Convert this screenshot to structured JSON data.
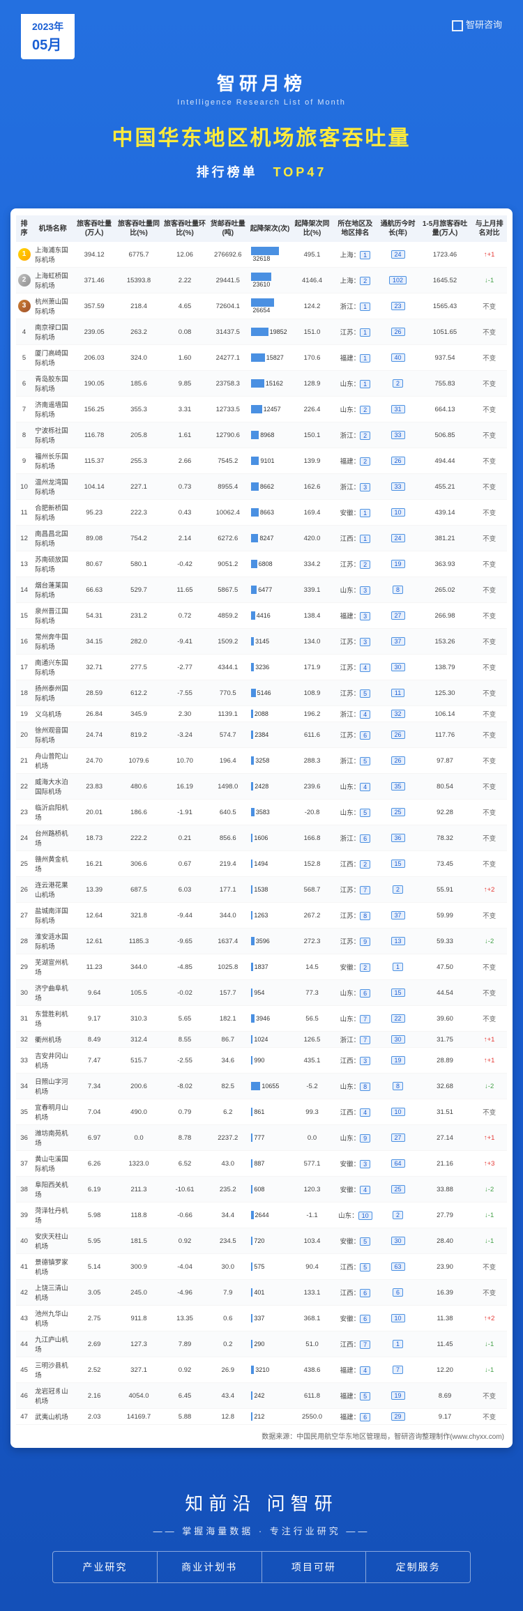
{
  "date": {
    "year": "2023年",
    "month": "05月"
  },
  "logo": "智研咨询",
  "header": {
    "chinese": "智研月榜",
    "english": "Intelligence Research List of Month",
    "main": "中国华东地区机场旅客吞吐量",
    "sub1": "排行榜单",
    "sub2": "TOP47"
  },
  "columns": [
    "排序",
    "机场名称",
    "旅客吞吐量(万人)",
    "旅客吞吐量同比(%)",
    "旅客吞吐量环比(%)",
    "货邮吞吐量(吨)",
    "起降架次(次)",
    "起降架次同比(%)",
    "所在地区及地区排名",
    "通航历今时长(年)",
    "1-5月旅客吞吐量(万人)",
    "与上月排名对比"
  ],
  "rows": [
    {
      "r": 1,
      "name": "上海浦东国际机场",
      "v1": "394.12",
      "v2": "6775.7",
      "v3": "12.06",
      "v4": "276692.6",
      "bar": 32618,
      "v6": "495.1",
      "loc": "上海：1",
      "v8": "24",
      "v9": "1723.46",
      "chg": "↑+1",
      "ct": "up"
    },
    {
      "r": 2,
      "name": "上海虹桥国际机场",
      "v1": "371.46",
      "v2": "15393.8",
      "v3": "2.22",
      "v4": "29441.5",
      "bar": 23610,
      "v6": "4146.4",
      "loc": "上海：2",
      "v8": "102",
      "v9": "1645.52",
      "chg": "↓-1",
      "ct": "down"
    },
    {
      "r": 3,
      "name": "杭州萧山国际机场",
      "v1": "357.59",
      "v2": "218.4",
      "v3": "4.65",
      "v4": "72604.1",
      "bar": 26654,
      "v6": "124.2",
      "loc": "浙江：1",
      "v8": "23",
      "v9": "1565.43",
      "chg": "不变",
      "ct": "same"
    },
    {
      "r": 4,
      "name": "南京禄口国际机场",
      "v1": "239.05",
      "v2": "263.2",
      "v3": "0.08",
      "v4": "31437.5",
      "bar": 19852,
      "v6": "151.0",
      "loc": "江苏：1",
      "v8": "26",
      "v9": "1051.65",
      "chg": "不变",
      "ct": "same"
    },
    {
      "r": 5,
      "name": "厦门高崎国际机场",
      "v1": "206.03",
      "v2": "324.0",
      "v3": "1.60",
      "v4": "24277.1",
      "bar": 15827,
      "v6": "170.6",
      "loc": "福建：1",
      "v8": "40",
      "v9": "937.54",
      "chg": "不变",
      "ct": "same"
    },
    {
      "r": 6,
      "name": "青岛胶东国际机场",
      "v1": "190.05",
      "v2": "185.6",
      "v3": "9.85",
      "v4": "23758.3",
      "bar": 15162,
      "v6": "128.9",
      "loc": "山东：1",
      "v8": "2",
      "v9": "755.83",
      "chg": "不变",
      "ct": "same"
    },
    {
      "r": 7,
      "name": "济南遥墙国际机场",
      "v1": "156.25",
      "v2": "355.3",
      "v3": "3.31",
      "v4": "12733.5",
      "bar": 12457,
      "v6": "226.4",
      "loc": "山东：2",
      "v8": "31",
      "v9": "664.13",
      "chg": "不变",
      "ct": "same"
    },
    {
      "r": 8,
      "name": "宁波栎社国际机场",
      "v1": "116.78",
      "v2": "205.8",
      "v3": "1.61",
      "v4": "12790.6",
      "bar": 8968,
      "v6": "150.1",
      "loc": "浙江：2",
      "v8": "33",
      "v9": "506.85",
      "chg": "不变",
      "ct": "same"
    },
    {
      "r": 9,
      "name": "福州长乐国际机场",
      "v1": "115.37",
      "v2": "255.3",
      "v3": "2.66",
      "v4": "7545.2",
      "bar": 9101,
      "v6": "139.9",
      "loc": "福建：2",
      "v8": "26",
      "v9": "494.44",
      "chg": "不变",
      "ct": "same"
    },
    {
      "r": 10,
      "name": "温州龙湾国际机场",
      "v1": "104.14",
      "v2": "227.1",
      "v3": "0.73",
      "v4": "8955.4",
      "bar": 8662,
      "v6": "162.6",
      "loc": "浙江：3",
      "v8": "33",
      "v9": "455.21",
      "chg": "不变",
      "ct": "same"
    },
    {
      "r": 11,
      "name": "合肥新桥国际机场",
      "v1": "95.23",
      "v2": "222.3",
      "v3": "0.43",
      "v4": "10062.4",
      "bar": 8663,
      "v6": "169.4",
      "loc": "安徽：1",
      "v8": "10",
      "v9": "439.14",
      "chg": "不变",
      "ct": "same"
    },
    {
      "r": 12,
      "name": "南昌昌北国际机场",
      "v1": "89.08",
      "v2": "754.2",
      "v3": "2.14",
      "v4": "6272.6",
      "bar": 8247,
      "v6": "420.0",
      "loc": "江西：1",
      "v8": "24",
      "v9": "381.21",
      "chg": "不变",
      "ct": "same"
    },
    {
      "r": 13,
      "name": "苏南硕放国际机场",
      "v1": "80.67",
      "v2": "580.1",
      "v3": "-0.42",
      "v4": "9051.2",
      "bar": 6808,
      "v6": "334.2",
      "loc": "江苏：2",
      "v8": "19",
      "v9": "363.93",
      "chg": "不变",
      "ct": "same"
    },
    {
      "r": 14,
      "name": "烟台蓬莱国际机场",
      "v1": "66.63",
      "v2": "529.7",
      "v3": "11.65",
      "v4": "5867.5",
      "bar": 6477,
      "v6": "339.1",
      "loc": "山东：3",
      "v8": "8",
      "v9": "265.02",
      "chg": "不变",
      "ct": "same"
    },
    {
      "r": 15,
      "name": "泉州晋江国际机场",
      "v1": "54.31",
      "v2": "231.2",
      "v3": "0.72",
      "v4": "4859.2",
      "bar": 4416,
      "v6": "138.4",
      "loc": "福建：3",
      "v8": "27",
      "v9": "266.98",
      "chg": "不变",
      "ct": "same"
    },
    {
      "r": 16,
      "name": "常州奔牛国际机场",
      "v1": "34.15",
      "v2": "282.0",
      "v3": "-9.41",
      "v4": "1509.2",
      "bar": 3145,
      "v6": "134.0",
      "loc": "江苏：3",
      "v8": "37",
      "v9": "153.26",
      "chg": "不变",
      "ct": "same"
    },
    {
      "r": 17,
      "name": "南通兴东国际机场",
      "v1": "32.71",
      "v2": "277.5",
      "v3": "-2.77",
      "v4": "4344.1",
      "bar": 3236,
      "v6": "171.9",
      "loc": "江苏：4",
      "v8": "30",
      "v9": "138.79",
      "chg": "不变",
      "ct": "same"
    },
    {
      "r": 18,
      "name": "扬州泰州国际机场",
      "v1": "28.59",
      "v2": "612.2",
      "v3": "-7.55",
      "v4": "770.5",
      "bar": 5146,
      "v6": "108.9",
      "loc": "江苏：5",
      "v8": "11",
      "v9": "125.30",
      "chg": "不变",
      "ct": "same"
    },
    {
      "r": 19,
      "name": "义乌机场",
      "v1": "26.84",
      "v2": "345.9",
      "v3": "2.30",
      "v4": "1139.1",
      "bar": 2088,
      "v6": "196.2",
      "loc": "浙江：4",
      "v8": "32",
      "v9": "106.14",
      "chg": "不变",
      "ct": "same"
    },
    {
      "r": 20,
      "name": "徐州观音国际机场",
      "v1": "24.74",
      "v2": "819.2",
      "v3": "-3.24",
      "v4": "574.7",
      "bar": 2384,
      "v6": "611.6",
      "loc": "江苏：6",
      "v8": "26",
      "v9": "117.76",
      "chg": "不变",
      "ct": "same"
    },
    {
      "r": 21,
      "name": "舟山普陀山机场",
      "v1": "24.70",
      "v2": "1079.6",
      "v3": "10.70",
      "v4": "196.4",
      "bar": 3258,
      "v6": "288.3",
      "loc": "浙江：5",
      "v8": "26",
      "v9": "97.87",
      "chg": "不变",
      "ct": "same"
    },
    {
      "r": 22,
      "name": "威海大水泊国际机场",
      "v1": "23.83",
      "v2": "480.6",
      "v3": "16.19",
      "v4": "1498.0",
      "bar": 2428,
      "v6": "239.6",
      "loc": "山东：4",
      "v8": "35",
      "v9": "80.54",
      "chg": "不变",
      "ct": "same"
    },
    {
      "r": 23,
      "name": "临沂启阳机场",
      "v1": "20.01",
      "v2": "186.6",
      "v3": "-1.91",
      "v4": "640.5",
      "bar": 3583,
      "v6": "-20.8",
      "loc": "山东：5",
      "v8": "25",
      "v9": "92.28",
      "chg": "不变",
      "ct": "same"
    },
    {
      "r": 24,
      "name": "台州路桥机场",
      "v1": "18.73",
      "v2": "222.2",
      "v3": "0.21",
      "v4": "856.6",
      "bar": 1606,
      "v6": "166.8",
      "loc": "浙江：6",
      "v8": "36",
      "v9": "78.32",
      "chg": "不变",
      "ct": "same"
    },
    {
      "r": 25,
      "name": "赣州黄金机场",
      "v1": "16.21",
      "v2": "306.6",
      "v3": "0.67",
      "v4": "219.4",
      "bar": 1494,
      "v6": "152.8",
      "loc": "江西：2",
      "v8": "15",
      "v9": "73.45",
      "chg": "不变",
      "ct": "same"
    },
    {
      "r": 26,
      "name": "连云港花果山机场",
      "v1": "13.39",
      "v2": "687.5",
      "v3": "6.03",
      "v4": "177.1",
      "bar": 1538,
      "v6": "568.7",
      "loc": "江苏：7",
      "v8": "2",
      "v9": "55.91",
      "chg": "↑+2",
      "ct": "up"
    },
    {
      "r": 27,
      "name": "盐城南洋国际机场",
      "v1": "12.64",
      "v2": "321.8",
      "v3": "-9.44",
      "v4": "344.0",
      "bar": 1263,
      "v6": "267.2",
      "loc": "江苏：8",
      "v8": "37",
      "v9": "59.99",
      "chg": "不变",
      "ct": "same"
    },
    {
      "r": 28,
      "name": "淮安涟水国际机场",
      "v1": "12.61",
      "v2": "1185.3",
      "v3": "-9.65",
      "v4": "1637.4",
      "bar": 3596,
      "v6": "272.3",
      "loc": "江苏：9",
      "v8": "13",
      "v9": "59.33",
      "chg": "↓-2",
      "ct": "down"
    },
    {
      "r": 29,
      "name": "芜湖宣州机场",
      "v1": "11.23",
      "v2": "344.0",
      "v3": "-4.85",
      "v4": "1025.8",
      "bar": 1837,
      "v6": "14.5",
      "loc": "安徽：2",
      "v8": "1",
      "v9": "47.50",
      "chg": "不变",
      "ct": "same"
    },
    {
      "r": 30,
      "name": "济宁曲阜机场",
      "v1": "9.64",
      "v2": "105.5",
      "v3": "-0.02",
      "v4": "157.7",
      "bar": 954,
      "v6": "77.3",
      "loc": "山东：6",
      "v8": "15",
      "v9": "44.54",
      "chg": "不变",
      "ct": "same"
    },
    {
      "r": 31,
      "name": "东营胜利机场",
      "v1": "9.17",
      "v2": "310.3",
      "v3": "5.65",
      "v4": "182.1",
      "bar": 3946,
      "v6": "56.5",
      "loc": "山东：7",
      "v8": "22",
      "v9": "39.60",
      "chg": "不变",
      "ct": "same"
    },
    {
      "r": 32,
      "name": "衢州机场",
      "v1": "8.49",
      "v2": "312.4",
      "v3": "8.55",
      "v4": "86.7",
      "bar": 1024,
      "v6": "126.5",
      "loc": "浙江：7",
      "v8": "30",
      "v9": "31.75",
      "chg": "↑+1",
      "ct": "up"
    },
    {
      "r": 33,
      "name": "吉安井冈山机场",
      "v1": "7.47",
      "v2": "515.7",
      "v3": "-2.55",
      "v4": "34.6",
      "bar": 990,
      "v6": "435.1",
      "loc": "江西：3",
      "v8": "19",
      "v9": "28.89",
      "chg": "↑+1",
      "ct": "up"
    },
    {
      "r": 34,
      "name": "日照山字河机场",
      "v1": "7.34",
      "v2": "200.6",
      "v3": "-8.02",
      "v4": "82.5",
      "bar": 10655,
      "v6": "-5.2",
      "loc": "山东：8",
      "v8": "8",
      "v9": "32.68",
      "chg": "↓-2",
      "ct": "down"
    },
    {
      "r": 35,
      "name": "宜春明月山机场",
      "v1": "7.04",
      "v2": "490.0",
      "v3": "0.79",
      "v4": "6.2",
      "bar": 861,
      "v6": "99.3",
      "loc": "江西：4",
      "v8": "10",
      "v9": "31.51",
      "chg": "不变",
      "ct": "same"
    },
    {
      "r": 36,
      "name": "潍坊南苑机场",
      "v1": "6.97",
      "v2": "0.0",
      "v3": "8.78",
      "v4": "2237.2",
      "bar": 777,
      "v6": "0.0",
      "loc": "山东：9",
      "v8": "27",
      "v9": "27.14",
      "chg": "↑+1",
      "ct": "up"
    },
    {
      "r": 37,
      "name": "黄山屯溪国际机场",
      "v1": "6.26",
      "v2": "1323.0",
      "v3": "6.52",
      "v4": "43.0",
      "bar": 887,
      "v6": "577.1",
      "loc": "安徽：3",
      "v8": "64",
      "v9": "21.16",
      "chg": "↑+3",
      "ct": "up"
    },
    {
      "r": 38,
      "name": "阜阳西关机场",
      "v1": "6.19",
      "v2": "211.3",
      "v3": "-10.61",
      "v4": "235.2",
      "bar": 608,
      "v6": "120.3",
      "loc": "安徽：4",
      "v8": "25",
      "v9": "33.88",
      "chg": "↓-2",
      "ct": "down"
    },
    {
      "r": 39,
      "name": "菏泽牡丹机场",
      "v1": "5.98",
      "v2": "118.8",
      "v3": "-0.66",
      "v4": "34.4",
      "bar": 2644,
      "v6": "-1.1",
      "loc": "山东：10",
      "v8": "2",
      "v9": "27.79",
      "chg": "↓-1",
      "ct": "down"
    },
    {
      "r": 40,
      "name": "安庆天柱山机场",
      "v1": "5.95",
      "v2": "181.5",
      "v3": "0.92",
      "v4": "234.5",
      "bar": 720,
      "v6": "103.4",
      "loc": "安徽：5",
      "v8": "30",
      "v9": "28.40",
      "chg": "↓-1",
      "ct": "down"
    },
    {
      "r": 41,
      "name": "景德镇罗家机场",
      "v1": "5.14",
      "v2": "300.9",
      "v3": "-4.04",
      "v4": "30.0",
      "bar": 575,
      "v6": "90.4",
      "loc": "江西：5",
      "v8": "63",
      "v9": "23.90",
      "chg": "不变",
      "ct": "same"
    },
    {
      "r": 42,
      "name": "上饶三清山机场",
      "v1": "3.05",
      "v2": "245.0",
      "v3": "-4.96",
      "v4": "7.9",
      "bar": 401,
      "v6": "133.1",
      "loc": "江西：6",
      "v8": "6",
      "v9": "16.39",
      "chg": "不变",
      "ct": "same"
    },
    {
      "r": 43,
      "name": "池州九华山机场",
      "v1": "2.75",
      "v2": "911.8",
      "v3": "13.35",
      "v4": "0.6",
      "bar": 337,
      "v6": "368.1",
      "loc": "安徽：6",
      "v8": "10",
      "v9": "11.38",
      "chg": "↑+2",
      "ct": "up"
    },
    {
      "r": 44,
      "name": "九江庐山机场",
      "v1": "2.69",
      "v2": "127.3",
      "v3": "7.89",
      "v4": "0.2",
      "bar": 290,
      "v6": "51.0",
      "loc": "江西：7",
      "v8": "1",
      "v9": "11.45",
      "chg": "↓-1",
      "ct": "down"
    },
    {
      "r": 45,
      "name": "三明沙县机场",
      "v1": "2.52",
      "v2": "327.1",
      "v3": "0.92",
      "v4": "26.9",
      "bar": 3210,
      "v6": "438.6",
      "loc": "福建：4",
      "v8": "7",
      "v9": "12.20",
      "chg": "↓-1",
      "ct": "down"
    },
    {
      "r": 46,
      "name": "龙岩冠豸山机场",
      "v1": "2.16",
      "v2": "4054.0",
      "v3": "6.45",
      "v4": "43.4",
      "bar": 242,
      "v6": "611.8",
      "loc": "福建：5",
      "v8": "19",
      "v9": "8.69",
      "chg": "不变",
      "ct": "same"
    },
    {
      "r": 47,
      "name": "武夷山机场",
      "v1": "2.03",
      "v2": "14169.7",
      "v3": "5.88",
      "v4": "12.8",
      "bar": 212,
      "v6": "2550.0",
      "loc": "福建：6",
      "v8": "29",
      "v9": "9.17",
      "chg": "不变",
      "ct": "same"
    }
  ],
  "maxBar": 32618,
  "source": "数据来源：中国民用航空华东地区管理局，智研咨询整理制作(www.chyxx.com)",
  "footer": {
    "title": "知前沿 问智研",
    "sub": "—— 掌握海量数据 · 专注行业研究 ——",
    "links": [
      "产业研究",
      "商业计划书",
      "项目可研",
      "定制服务"
    ]
  }
}
